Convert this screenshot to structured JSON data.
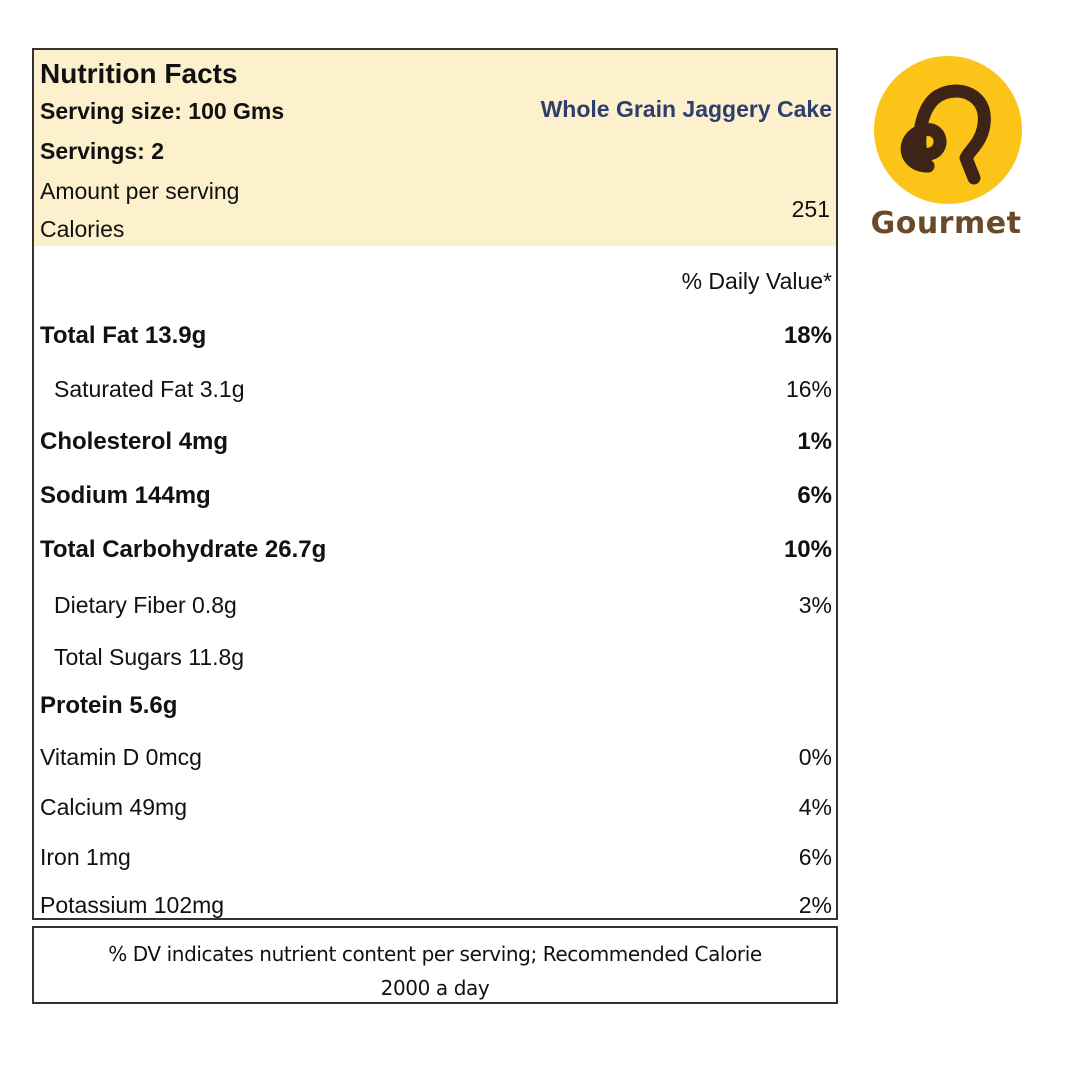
{
  "label": {
    "title": "Nutrition Facts",
    "serving_size": "Serving size: 100 Gms",
    "servings": "Servings: 2",
    "product_name": "Whole Grain Jaggery Cake",
    "amount_per_serving": "Amount per serving",
    "calories_label": "Calories",
    "calories_value": "251",
    "daily_value_header": "% Daily Value*",
    "colors": {
      "header_bg": "#fdf0cc",
      "product_name": "#2e3f6e"
    },
    "nutrients": [
      {
        "name": "Total Fat 13.9g",
        "dv": "18%"
      },
      {
        "name": "Saturated Fat 3.1g",
        "dv": "16%"
      },
      {
        "name": "Cholesterol 4mg",
        "dv": "1%"
      },
      {
        "name": "Sodium 144mg",
        "dv": "6%"
      },
      {
        "name": "Total Carbohydrate 26.7g",
        "dv": "10%"
      },
      {
        "name": "Dietary Fiber 0.8g",
        "dv": "3%"
      },
      {
        "name": "Total Sugars 11.8g",
        "dv": ""
      },
      {
        "name": "Protein 5.6g",
        "dv": ""
      },
      {
        "name": "Vitamin D 0mcg",
        "dv": "0%"
      },
      {
        "name": "Calcium 49mg",
        "dv": "4%"
      },
      {
        "name": "Iron 1mg",
        "dv": "6%"
      },
      {
        "name": "Potassium 102mg",
        "dv": "2%"
      }
    ]
  },
  "footer": {
    "line1": "% DV indicates nutrient content per serving; Recommended Calorie",
    "line2": "2000 a day"
  },
  "logo": {
    "icon": "gourmet-logo-icon",
    "text": "Gourmet",
    "colors": {
      "circle": "#fcc419",
      "glyph": "#3d2416"
    }
  }
}
